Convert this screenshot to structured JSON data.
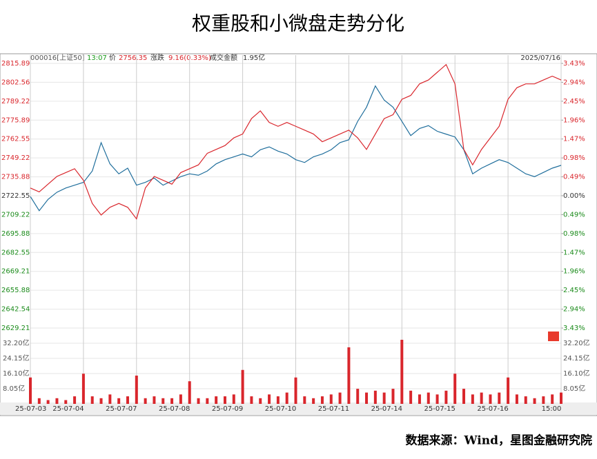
{
  "title": "权重股和小微盘走势分化",
  "source": "数据来源：Wind，星图金融研究院",
  "chart_data": [
    {
      "type": "line",
      "header": {
        "code": "000016[上证50]",
        "time": "13:07",
        "price_label": "价",
        "price": "2756.35",
        "change_label": "涨跌",
        "change": "9.16(0.33%)",
        "amount_label": "成交金额",
        "amount": "1.95亿",
        "date": "2025/07/16"
      },
      "categories": [
        "25-07-03",
        null,
        null,
        null,
        null,
        null,
        "25-07-04",
        null,
        null,
        null,
        null,
        null,
        "25-07-07",
        null,
        null,
        null,
        null,
        null,
        "25-07-08",
        null,
        null,
        null,
        null,
        null,
        "25-07-09",
        null,
        null,
        null,
        null,
        null,
        "25-07-10",
        null,
        null,
        null,
        null,
        null,
        "25-07-11",
        null,
        null,
        null,
        null,
        null,
        "25-07-14",
        null,
        null,
        null,
        null,
        null,
        "25-07-15",
        null,
        null,
        null,
        null,
        null,
        "25-07-16",
        null,
        null,
        null,
        null,
        null,
        "15:00"
      ],
      "series": [
        {
          "color": "#1f6e9c",
          "values": [
            2722,
            2712,
            2720,
            2725,
            2728,
            2730,
            2732,
            2740,
            2760,
            2745,
            2738,
            2742,
            2730,
            2732,
            2735,
            2730,
            2733,
            2736,
            2738,
            2737,
            2740,
            2745,
            2748,
            2750,
            2752,
            2750,
            2755,
            2757,
            2754,
            2752,
            2748,
            2746,
            2750,
            2752,
            2755,
            2760,
            2762,
            2775,
            2785,
            2800,
            2790,
            2785,
            2775,
            2765,
            2770,
            2772,
            2768,
            2766,
            2764,
            2755,
            2738,
            2742,
            2745,
            2748,
            2746,
            2742,
            2738,
            2736,
            2739,
            2742,
            2744
          ]
        },
        {
          "color": "#d9262c",
          "axis": "y2",
          "values": [
            0.2,
            0.1,
            0.3,
            0.5,
            0.6,
            0.7,
            0.4,
            -0.2,
            -0.5,
            -0.3,
            -0.2,
            -0.3,
            -0.6,
            0.2,
            0.5,
            0.4,
            0.3,
            0.6,
            0.7,
            0.8,
            1.1,
            1.2,
            1.3,
            1.5,
            1.6,
            2.0,
            2.2,
            1.9,
            1.8,
            1.9,
            1.8,
            1.7,
            1.6,
            1.4,
            1.5,
            1.6,
            1.7,
            1.5,
            1.2,
            1.6,
            2.0,
            2.1,
            2.5,
            2.6,
            2.9,
            3.0,
            3.2,
            3.4,
            2.9,
            1.2,
            0.8,
            1.2,
            1.5,
            1.8,
            2.5,
            2.8,
            2.9,
            2.9,
            3.0,
            3.1,
            3.0
          ]
        }
      ],
      "ylim": [
        2629.21,
        2815.89
      ],
      "yticks": [
        2815.89,
        2802.56,
        2789.22,
        2775.89,
        2762.55,
        2749.22,
        2735.88,
        2722.55,
        2709.22,
        2695.88,
        2682.55,
        2669.21,
        2655.88,
        2642.54,
        2629.21
      ],
      "y2lim": [
        -3.43,
        3.43
      ],
      "y2ticks": [
        {
          "value": 3.43,
          "label": "3.43%"
        },
        {
          "value": 2.94,
          "label": "2.94%"
        },
        {
          "value": 2.45,
          "label": "2.45%"
        },
        {
          "value": 1.96,
          "label": "1.96%"
        },
        {
          "value": 1.47,
          "label": "1.47%"
        },
        {
          "value": 0.98,
          "label": "0.98%"
        },
        {
          "value": 0.49,
          "label": "0.49%"
        },
        {
          "value": 0,
          "label": "0.00%"
        },
        {
          "value": -0.49,
          "label": "0.49%"
        },
        {
          "value": -0.98,
          "label": "0.98%"
        },
        {
          "value": -1.47,
          "label": "1.47%"
        },
        {
          "value": -1.96,
          "label": "1.96%"
        },
        {
          "value": -2.45,
          "label": "2.45%"
        },
        {
          "value": -2.94,
          "label": "2.94%"
        },
        {
          "value": -3.43,
          "label": "3.43%"
        }
      ],
      "grid": true
    },
    {
      "type": "bar",
      "color": "#d9262c",
      "values": [
        14,
        3,
        2,
        3,
        2,
        4,
        16,
        4,
        3,
        5,
        3,
        4,
        15,
        3,
        4,
        3,
        3,
        5,
        12,
        3,
        3,
        4,
        4,
        5,
        18,
        4,
        3,
        5,
        4,
        6,
        14,
        4,
        3,
        4,
        5,
        6,
        30,
        8,
        6,
        7,
        6,
        8,
        34,
        7,
        5,
        6,
        5,
        7,
        16,
        8,
        5,
        6,
        5,
        6,
        14,
        5,
        4,
        3,
        4,
        5,
        6
      ],
      "ylim": [
        0,
        36.2
      ],
      "yticks": [
        {
          "value": 32.2,
          "label": "32.20亿"
        },
        {
          "value": 24.15,
          "label": "24.15亿"
        },
        {
          "value": 16.1,
          "label": "16.10亿"
        },
        {
          "value": 8.05,
          "label": "8.05亿"
        }
      ]
    }
  ]
}
